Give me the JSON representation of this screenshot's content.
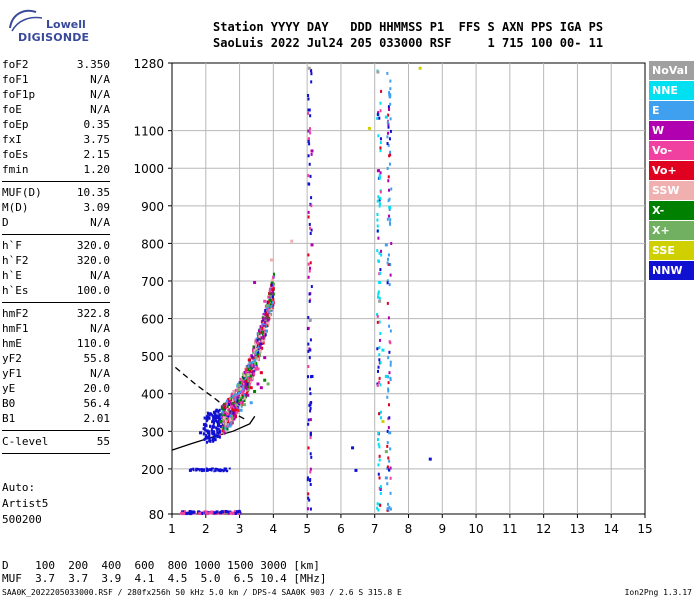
{
  "logo": {
    "brand_line1": "Lowell",
    "brand_line2": "DIGISONDE"
  },
  "header": {
    "line1": "Station YYYY DAY   DDD HHMMSS P1  FFS S AXN PPS IGA PS",
    "line2": "SaoLuis 2022 Jul24 205 033000 RSF     1 715 100 00- 11"
  },
  "params": {
    "group1": [
      {
        "name": "foF2",
        "value": "3.350"
      },
      {
        "name": "foF1",
        "value": "N/A"
      },
      {
        "name": "foF1p",
        "value": "N/A"
      },
      {
        "name": "foE",
        "value": "N/A"
      },
      {
        "name": "foEp",
        "value": "0.35"
      },
      {
        "name": "fxI",
        "value": "3.75"
      },
      {
        "name": "foEs",
        "value": "2.15"
      },
      {
        "name": "fmin",
        "value": "1.20"
      }
    ],
    "group2": [
      {
        "name": "MUF(D)",
        "value": "10.35"
      },
      {
        "name": "M(D)",
        "value": "3.09"
      },
      {
        "name": "D",
        "value": "N/A"
      }
    ],
    "group3": [
      {
        "name": "h`F",
        "value": "320.0"
      },
      {
        "name": "h`F2",
        "value": "320.0"
      },
      {
        "name": "h`E",
        "value": "N/A"
      },
      {
        "name": "h`Es",
        "value": "100.0"
      }
    ],
    "group4": [
      {
        "name": "hmF2",
        "value": "322.8"
      },
      {
        "name": "hmF1",
        "value": "N/A"
      },
      {
        "name": "hmE",
        "value": "110.0"
      },
      {
        "name": "yF2",
        "value": "55.8"
      },
      {
        "name": "yF1",
        "value": "N/A"
      },
      {
        "name": "yE",
        "value": "20.0"
      },
      {
        "name": "B0",
        "value": "56.4"
      },
      {
        "name": "B1",
        "value": "2.01"
      }
    ],
    "group5": [
      {
        "name": "C-level",
        "value": "55"
      }
    ]
  },
  "auto": {
    "line1": "Auto:",
    "line2": "Artist5",
    "line3": "500200"
  },
  "legend": [
    {
      "label": "NoVal",
      "color": "#a0a0a0"
    },
    {
      "label": "NNE",
      "color": "#00e0f0"
    },
    {
      "label": "E",
      "color": "#40a0f0"
    },
    {
      "label": "W",
      "color": "#b000b0"
    },
    {
      "label": "Vo-",
      "color": "#f040a0"
    },
    {
      "label": "Vo+",
      "color": "#e00020"
    },
    {
      "label": "SSW",
      "color": "#f0b0b0"
    },
    {
      "label": "X-",
      "color": "#008000"
    },
    {
      "label": "X+",
      "color": "#70b060"
    },
    {
      "label": "SSE",
      "color": "#d0d000"
    },
    {
      "label": "NNW",
      "color": "#1010d0"
    }
  ],
  "bottom": {
    "line1": "D    100  200  400  600  800 1000 1500 3000 [km]",
    "line2": "MUF  3.7  3.7  3.9  4.1  4.5  5.0  6.5 10.4 [MHz]"
  },
  "footer": {
    "left": "SAA0K_2022205033000.RSF / 280fx256h 50 kHz 5.0 km / DPS-4 SAA0K 903 / 2.6 S 315.8 E",
    "right": "Ion2Png 1.3.17"
  },
  "chart_data": {
    "type": "scatter",
    "title": "",
    "xlabel": "",
    "ylabel": "",
    "xlim": [
      1,
      15
    ],
    "ylim": [
      80,
      1280
    ],
    "x_ticks": [
      1,
      2,
      3,
      4,
      5,
      6,
      7,
      8,
      9,
      10,
      11,
      12,
      13,
      14,
      15
    ],
    "y_ticks": [
      80,
      200,
      300,
      400,
      500,
      600,
      700,
      800,
      900,
      1000,
      1100,
      1280
    ],
    "grid": true,
    "series": [
      {
        "name": "NoVal",
        "color": "#a0a0a0",
        "points": [
          [
            5.02,
            1270
          ],
          [
            7.05,
            1260
          ],
          [
            5.05,
            600
          ],
          [
            7.1,
            650
          ]
        ]
      },
      {
        "name": "NNE",
        "color": "#00e0f0",
        "points": [
          [
            7.3,
            1140
          ],
          [
            7.4,
            900
          ],
          [
            7.1,
            700
          ],
          [
            7.3,
            450
          ],
          [
            7.2,
            520
          ]
        ]
      },
      {
        "name": "E",
        "color": "#40a0f0",
        "points": [
          [
            3.0,
            360
          ],
          [
            3.3,
            380
          ],
          [
            7.4,
            1200
          ],
          [
            7.3,
            800
          ],
          [
            7.4,
            300
          ],
          [
            7.3,
            180
          ]
        ]
      },
      {
        "name": "W",
        "color": "#b000b0",
        "points": [
          [
            3.4,
            700
          ],
          [
            3.7,
            500
          ],
          [
            3.5,
            430
          ],
          [
            3.6,
            420
          ],
          [
            3.8,
            600
          ],
          [
            3.2,
            400
          ],
          [
            5.1,
            1050
          ],
          [
            5.1,
            800
          ]
        ]
      },
      {
        "name": "Vo-",
        "color": "#f040a0",
        "points": [
          [
            2.6,
            350
          ],
          [
            3.0,
            380
          ],
          [
            3.5,
            470
          ],
          [
            3.7,
            650
          ],
          [
            1.3,
            85
          ],
          [
            2.0,
            85
          ]
        ]
      },
      {
        "name": "Vo+",
        "color": "#e00020",
        "points": [
          [
            2.8,
            360
          ],
          [
            3.3,
            420
          ],
          [
            3.6,
            460
          ]
        ]
      },
      {
        "name": "SSW",
        "color": "#f0b0b0",
        "points": [
          [
            2.5,
            340
          ],
          [
            3.9,
            760
          ],
          [
            4.5,
            810
          ]
        ]
      },
      {
        "name": "X-",
        "color": "#008000",
        "points": [
          [
            3.4,
            410
          ],
          [
            3.7,
            440
          ],
          [
            2.4,
            330
          ]
        ]
      },
      {
        "name": "X+",
        "color": "#70b060",
        "points": [
          [
            3.8,
            430
          ],
          [
            3.1,
            375
          ],
          [
            7.3,
            250
          ]
        ]
      },
      {
        "name": "SSE",
        "color": "#d0d000",
        "points": [
          [
            6.8,
            1110
          ],
          [
            8.3,
            1270
          ],
          [
            7.2,
            330
          ]
        ]
      },
      {
        "name": "NNW",
        "color": "#1010d0",
        "points": [
          [
            1.8,
            300
          ],
          [
            2.0,
            305
          ],
          [
            1.5,
            200
          ],
          [
            2.0,
            200
          ],
          [
            1.5,
            85
          ],
          [
            5.1,
            450
          ],
          [
            6.4,
            200
          ],
          [
            8.6,
            230
          ],
          [
            6.3,
            260
          ]
        ]
      }
    ]
  }
}
